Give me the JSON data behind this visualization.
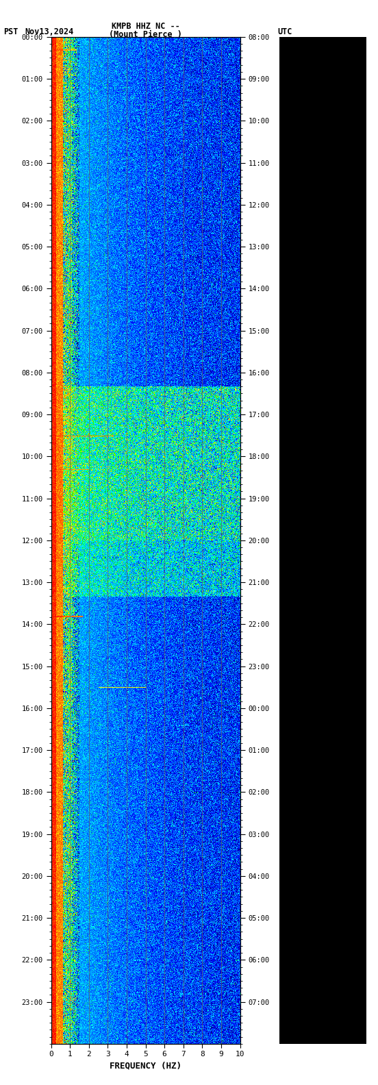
{
  "title_line1": "KMPB HHZ NC --",
  "title_line2": "(Mount Pierce )",
  "label_left": "PST",
  "label_date": "Nov13,2024",
  "label_right": "UTC",
  "xlabel": "FREQUENCY (HZ)",
  "freq_min": 0,
  "freq_max": 10,
  "freq_ticks": [
    0,
    1,
    2,
    3,
    4,
    5,
    6,
    7,
    8,
    9,
    10
  ],
  "left_time_labels": [
    "00:00",
    "01:00",
    "02:00",
    "03:00",
    "04:00",
    "05:00",
    "06:00",
    "07:00",
    "08:00",
    "09:00",
    "10:00",
    "11:00",
    "12:00",
    "13:00",
    "14:00",
    "15:00",
    "16:00",
    "17:00",
    "18:00",
    "19:00",
    "20:00",
    "21:00",
    "22:00",
    "23:00"
  ],
  "right_time_labels": [
    "08:00",
    "09:00",
    "10:00",
    "11:00",
    "12:00",
    "13:00",
    "14:00",
    "15:00",
    "16:00",
    "17:00",
    "18:00",
    "19:00",
    "20:00",
    "21:00",
    "22:00",
    "23:00",
    "00:00",
    "01:00",
    "02:00",
    "03:00",
    "04:00",
    "05:00",
    "06:00",
    "07:00"
  ],
  "bg_color": "#ffffff",
  "text_color": "#000000",
  "grid_color": "#808080",
  "plot_bg": "#000080"
}
